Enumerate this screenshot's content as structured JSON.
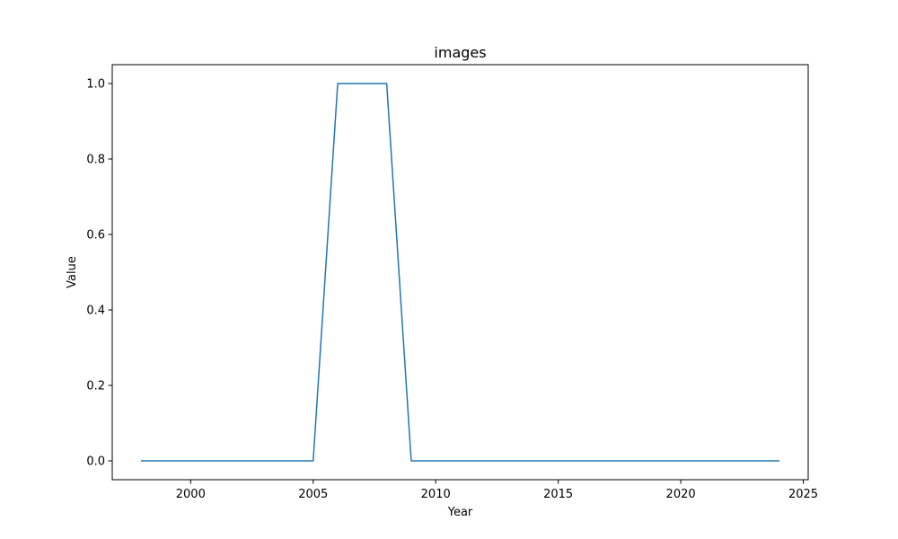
{
  "chart_data": {
    "type": "line",
    "title": "images",
    "xlabel": "Year",
    "ylabel": "Value",
    "xlim": [
      1996.8,
      2025.2
    ],
    "ylim": [
      -0.05,
      1.05
    ],
    "x_ticks": [
      2000,
      2005,
      2010,
      2015,
      2020,
      2025
    ],
    "y_ticks": [
      0.0,
      0.2,
      0.4,
      0.6,
      0.8,
      1.0
    ],
    "x_tick_labels": [
      "2000",
      "2005",
      "2010",
      "2015",
      "2020",
      "2025"
    ],
    "y_tick_labels": [
      "0.0",
      "0.2",
      "0.4",
      "0.6",
      "0.8",
      "1.0"
    ],
    "grid": false,
    "legend": "none",
    "series": [
      {
        "color": "#1f77b4",
        "x": [
          1998,
          1999,
          2000,
          2001,
          2002,
          2003,
          2004,
          2005,
          2006,
          2007,
          2008,
          2009,
          2010,
          2011,
          2012,
          2013,
          2014,
          2015,
          2016,
          2017,
          2018,
          2019,
          2020,
          2021,
          2022,
          2023,
          2024
        ],
        "y": [
          0,
          0,
          0,
          0,
          0,
          0,
          0,
          0,
          1,
          1,
          1,
          0,
          0,
          0,
          0,
          0,
          0,
          0,
          0,
          0,
          0,
          0,
          0,
          0,
          0,
          0,
          0
        ]
      }
    ]
  }
}
